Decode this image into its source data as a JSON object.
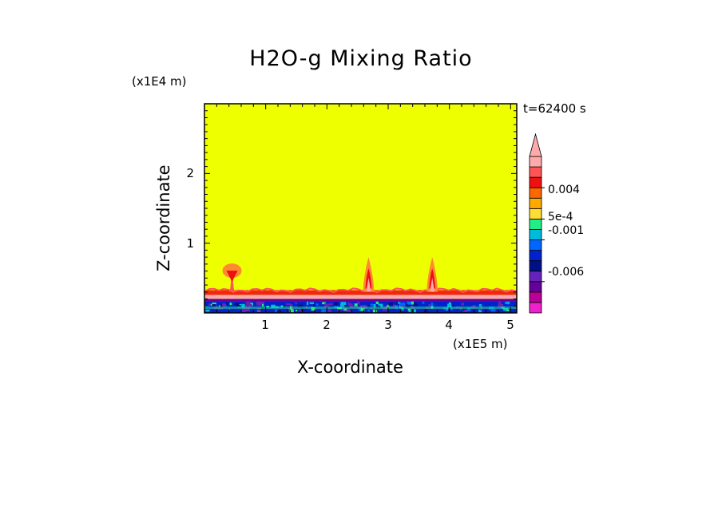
{
  "chart_data": {
    "type": "heatmap",
    "title": "H2O-g Mixing Ratio",
    "xlabel": "X-coordinate",
    "ylabel": "Z-coordinate",
    "x_unit": "(x1E5 m)",
    "z_unit": "(x1E4 m)",
    "time_label": "t=62400 s",
    "xlim": [
      0,
      5.1
    ],
    "ylim": [
      0,
      3.0
    ],
    "x_ticks": [
      "1",
      "2",
      "3",
      "4",
      "5"
    ],
    "x_tick_values": [
      1,
      2,
      3,
      4,
      5
    ],
    "y_ticks": [
      "1",
      "2"
    ],
    "y_tick_values": [
      1,
      2
    ],
    "background_color": "#eeff00",
    "surface_layer_top": 0.28,
    "plumes": [
      {
        "x": 0.45,
        "top": 0.72,
        "kind": "mushroom"
      },
      {
        "x": 2.68,
        "top": 0.8,
        "kind": "spike"
      },
      {
        "x": 3.72,
        "top": 0.8,
        "kind": "spike"
      }
    ],
    "colorbar": {
      "colors": [
        "#ee22cc",
        "#bb0099",
        "#660099",
        "#6622bb",
        "#001188",
        "#0022cc",
        "#0066ff",
        "#00bbdd",
        "#22ee88",
        "#ffdd33",
        "#ffaa00",
        "#ff6600",
        "#ee1111",
        "#ff5555",
        "#ffaaaa"
      ],
      "labels": [
        {
          "text": "0.004",
          "value": 0.004
        },
        {
          "text": "5e-4",
          "value": 0.0005
        },
        {
          "text": "-0.001",
          "value": -0.001
        },
        {
          "text": "-0.006",
          "value": -0.006
        }
      ],
      "extend": "max"
    }
  }
}
